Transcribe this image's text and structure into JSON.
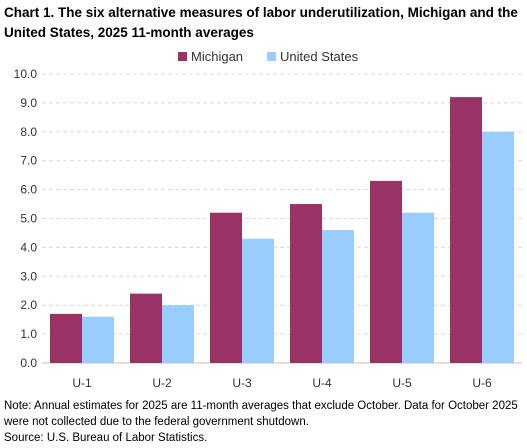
{
  "chart_data": {
    "type": "bar",
    "title": "Chart 1. The six alternative measures of labor underutilization, Michigan and the United States, 2025 11-month averages",
    "categories": [
      "U-1",
      "U-2",
      "U-3",
      "U-4",
      "U-5",
      "U-6"
    ],
    "series": [
      {
        "name": "Michigan",
        "color": "#993366",
        "values": [
          1.7,
          2.4,
          5.2,
          5.5,
          6.3,
          9.2
        ]
      },
      {
        "name": "United States",
        "color": "#99ccff",
        "values": [
          1.6,
          2.0,
          4.3,
          4.6,
          5.2,
          8.0
        ]
      }
    ],
    "xlabel": "",
    "ylabel": "",
    "ylim": [
      0,
      10
    ],
    "yticks": [
      "0.0",
      "1.0",
      "2.0",
      "3.0",
      "4.0",
      "5.0",
      "6.0",
      "7.0",
      "8.0",
      "9.0",
      "10.0"
    ],
    "grid": true,
    "legend_position": "top-center"
  },
  "note": "Note: Annual estimates for 2025 are 11-month averages that exclude October. Data for October 2025 were not collected due to the federal government shutdown.",
  "source": "Source: U.S. Bureau of Labor Statistics."
}
